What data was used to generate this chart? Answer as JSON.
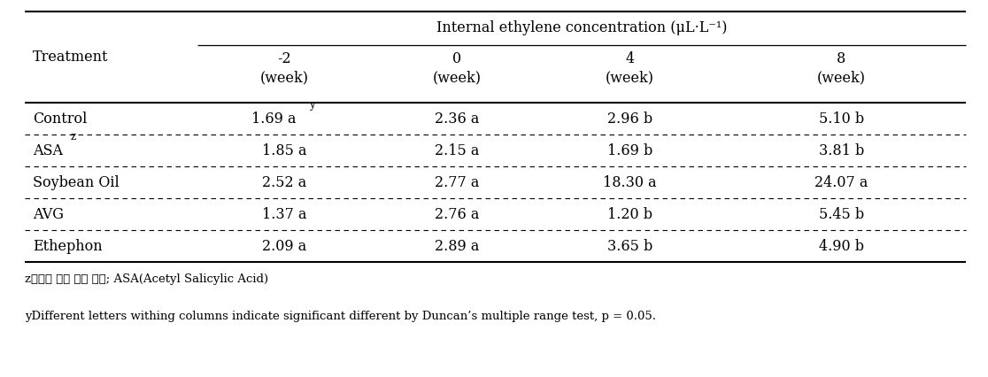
{
  "title": "Internal ethylene concentration (μL·L⁻¹)",
  "col_headers_num": [
    "-2",
    "0",
    "4",
    "8"
  ],
  "row_labels": [
    "Control",
    "ASA",
    "Soybean Oil",
    "AVG",
    "Ethephon"
  ],
  "row_label_supers": [
    "",
    "z",
    "",
    "",
    ""
  ],
  "cell_data": [
    [
      "1.69 a",
      "2.36 a",
      "2.96 b",
      "5.10 b"
    ],
    [
      "1.85 a",
      "2.15 a",
      "1.69 b",
      "3.81 b"
    ],
    [
      "2.52 a",
      "2.77 a",
      "18.30 a",
      "24.07 a"
    ],
    [
      "1.37 a",
      "2.76 a",
      "1.20 b",
      "5.45 b"
    ],
    [
      "2.09 a",
      "2.89 a",
      "3.65 b",
      "4.90 b"
    ]
  ],
  "cell_supers": [
    [
      "y",
      "",
      "",
      ""
    ],
    [
      "",
      "",
      "",
      ""
    ],
    [
      "",
      "",
      "",
      ""
    ],
    [
      "",
      "",
      "",
      ""
    ],
    [
      "",
      "",
      "",
      ""
    ]
  ],
  "footnote_z": "z수확후 저장 전에 치리; ASA(Acetyl Salicylic Acid)",
  "footnote_y": "yDifferent letters withing columns indicate significant different by Duncan’s multiple range test, p = 0.05.",
  "bg_color": "#ffffff",
  "text_color": "#000000",
  "font_size": 11.5,
  "footnote_font_size": 9.5
}
